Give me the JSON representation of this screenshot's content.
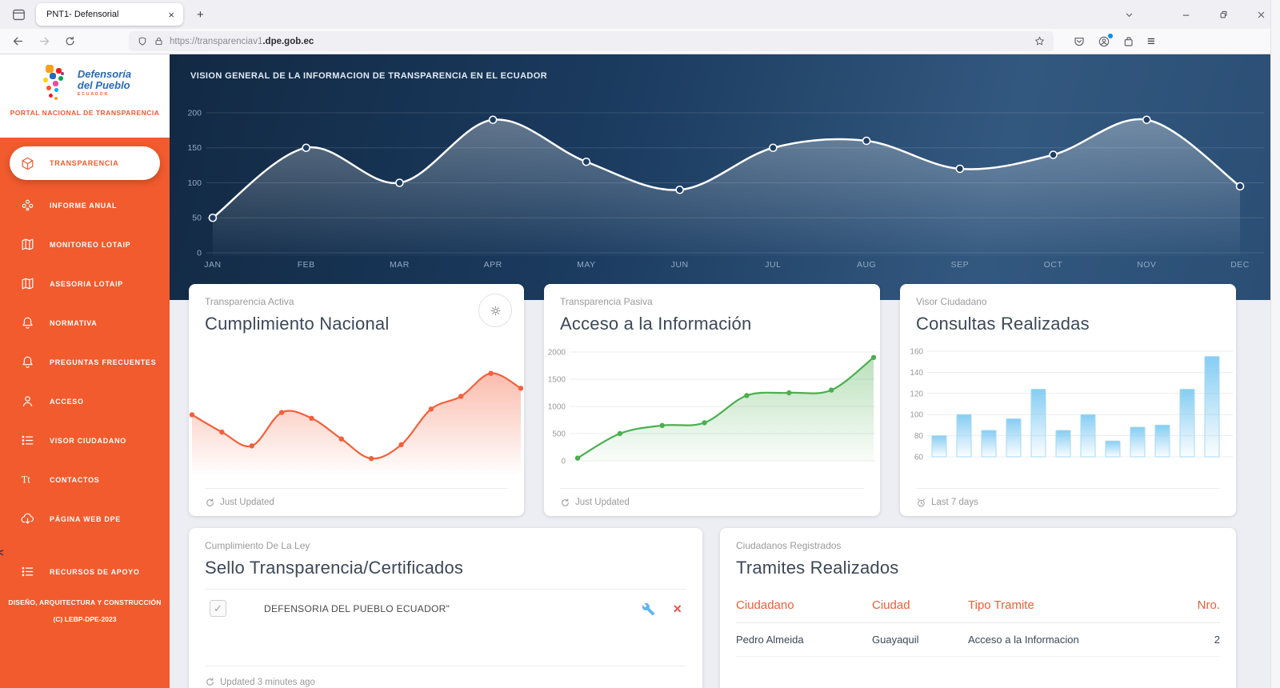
{
  "browser": {
    "tab_title": "PNT1- Defensorial",
    "url_prefix": "https://transparenciav1",
    "url_domain": ".dpe.gob.ec"
  },
  "sidebar": {
    "logo": {
      "line1": "Defensoría",
      "line2": "del Pueblo",
      "line3": "ECUADOR"
    },
    "portal_label": "PORTAL NACIONAL DE TRANSPARENCIA",
    "items": [
      {
        "label": "TRANSPARENCIA",
        "icon": "cube",
        "active": true
      },
      {
        "label": "INFORME ANUAL",
        "icon": "flower"
      },
      {
        "label": "MONITOREO LOTAIP",
        "icon": "map"
      },
      {
        "label": "ASESORIA LOTAIP",
        "icon": "map"
      },
      {
        "label": "NORMATIVA",
        "icon": "bell"
      },
      {
        "label": "PREGUNTAS FRECUENTES",
        "icon": "bell"
      },
      {
        "label": "ACCESO",
        "icon": "person"
      },
      {
        "label": "VISOR CIUDADANO",
        "icon": "list"
      },
      {
        "label": "CONTACTOS",
        "icon": "text"
      },
      {
        "label": "PÁGINA WEB DPE",
        "icon": "cloud"
      },
      {
        "label": "RECURSOS DE APOYO",
        "icon": "list",
        "gap_above": true
      }
    ],
    "footer_line1": "DISEÑO, ARQUITECTURA Y CONSTRUCCIÓN",
    "footer_line2": "(C) LEBP-DPE-2023"
  },
  "hero": {
    "title": "VISION GENERAL DE LA INFORMACION DE TRANSPARENCIA EN EL ECUADOR"
  },
  "cards": [
    {
      "category": "Transparencia Activa",
      "title": "Cumplimiento Nacional",
      "footer_text": "Just Updated"
    },
    {
      "category": "Transparencia Pasiva",
      "title": "Acceso a la Información",
      "footer_text": "Just Updated"
    },
    {
      "category": "Visor Ciudadano",
      "title": "Consultas Realizadas",
      "footer_text": "Last 7 days"
    },
    {
      "category": "Cumplimiento De La Ley",
      "title": "Sello Transparencia/Certificados",
      "entry": "DEFENSORIA DEL PUEBLO ECUADOR\"",
      "footer_text": "Updated 3 minutes ago"
    },
    {
      "category": "Ciudadanos Registrados",
      "title": "Tramites Realizados",
      "table": {
        "headers": [
          "Ciudadano",
          "Ciudad",
          "Tipo Tramite",
          "Nro."
        ],
        "rows": [
          [
            "Pedro Almeida",
            "Guayaquil",
            "Acceso a la Informacion",
            "2"
          ]
        ]
      }
    }
  ],
  "chart_data": [
    {
      "id": "hero",
      "type": "line",
      "title": "VISION GENERAL DE LA INFORMACION DE TRANSPARENCIA EN EL ECUADOR",
      "categories": [
        "JAN",
        "FEB",
        "MAR",
        "APR",
        "MAY",
        "JUN",
        "JUL",
        "AUG",
        "SEP",
        "OCT",
        "NOV",
        "DEC"
      ],
      "values": [
        50,
        150,
        100,
        190,
        130,
        90,
        150,
        160,
        120,
        140,
        190,
        95
      ],
      "yticks": [
        0,
        50,
        100,
        150,
        200
      ],
      "ylim": [
        0,
        200
      ],
      "line_color": "#ffffff",
      "grid": true,
      "legend": "none"
    },
    {
      "id": "cumplimiento",
      "type": "line",
      "title": "Cumplimiento Nacional",
      "values": [
        58,
        43,
        31,
        60,
        55,
        37,
        20,
        32,
        63,
        74,
        94,
        81
      ],
      "yticks": [],
      "ylim": [
        0,
        100
      ],
      "line_color": "#f4603c",
      "grid": false,
      "legend": "none"
    },
    {
      "id": "acceso",
      "type": "line",
      "title": "Acceso a la Información",
      "values": [
        50,
        500,
        650,
        700,
        1200,
        1250,
        1300,
        1900
      ],
      "yticks": [
        0,
        500,
        1000,
        1500,
        2000
      ],
      "ylim": [
        0,
        2000
      ],
      "line_color": "#4caf50",
      "grid": true,
      "legend": "none"
    },
    {
      "id": "consultas",
      "type": "bar",
      "title": "Consultas Realizadas",
      "values": [
        80,
        100,
        85,
        96,
        124,
        85,
        100,
        75,
        88,
        90,
        124,
        155
      ],
      "yticks": [
        60,
        80,
        100,
        120,
        140,
        160
      ],
      "ylim": [
        60,
        160
      ],
      "bar_color": "#7ecbf2",
      "grid": true,
      "legend": "none"
    }
  ],
  "colors": {
    "sidebar_orange": "#f15b2d",
    "hero_dark": "#122943",
    "hero_light": "#33587f",
    "line_red": "#f4603c",
    "line_green": "#4caf50",
    "bar_blue": "#7ecbf2",
    "table_header_orange": "#ef5d39",
    "heading_gray": "#3c4858"
  }
}
